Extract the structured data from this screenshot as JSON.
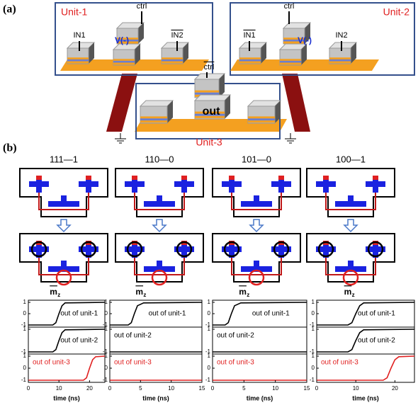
{
  "panel_a": {
    "label": "(a)",
    "unit_1": {
      "title": "Unit-1",
      "in1": "IN1",
      "v": "V(-)",
      "ctrl": "ctrl",
      "in2": "IN2"
    },
    "unit_2": {
      "title": "Unit-2",
      "in1": "IN1",
      "v": "V(-)",
      "ctrl": "ctrl",
      "in2": "IN2"
    },
    "unit_3": {
      "title": "Unit-3",
      "ctrl": "ctrl",
      "out": "out"
    }
  },
  "panel_b": {
    "label": "(b)",
    "columns": [
      {
        "case": "111—1",
        "mz": "m",
        "mz_sub": "z",
        "xlim": [
          0,
          25
        ],
        "xticks": [
          0,
          10,
          20
        ],
        "xlabel": "time (ns)",
        "traces": [
          {
            "name": "out of unit-1",
            "color": "#000000",
            "ylim": [
              -1,
              1
            ],
            "yticks": [
              -1,
              0,
              1
            ],
            "x": [
              0,
              8,
              9,
              10,
              11,
              12,
              25
            ],
            "y": [
              -1,
              -1,
              -0.8,
              0,
              0.7,
              0.95,
              1
            ]
          },
          {
            "name": "out of unit-2",
            "color": "#000000",
            "ylim": [
              -1,
              1
            ],
            "yticks": [
              -1,
              1
            ],
            "x": [
              0,
              8,
              9,
              10,
              11,
              12,
              25
            ],
            "y": [
              -1,
              -1,
              -0.8,
              0,
              0.7,
              0.95,
              1
            ]
          },
          {
            "name": "out of unit-3",
            "color": "#e02020",
            "ylim": [
              -1,
              1
            ],
            "yticks": [
              -1,
              0,
              1
            ],
            "x": [
              0,
              18,
              19,
              20,
              21,
              22,
              25
            ],
            "y": [
              -1,
              -1,
              -0.8,
              0,
              0.7,
              0.95,
              1
            ]
          }
        ]
      },
      {
        "case": "110—0",
        "mz": "m",
        "mz_sub": "z",
        "xlim": [
          0,
          15
        ],
        "xticks": [
          0,
          5,
          10,
          15
        ],
        "xlabel": "time (ns)",
        "traces": [
          {
            "name": "out of unit-1",
            "color": "#000000",
            "ylim": [
              -1,
              1
            ],
            "yticks": [
              -1,
              0,
              1
            ],
            "x": [
              0,
              3,
              3.5,
              4,
              4.5,
              5.5,
              15
            ],
            "y": [
              -1,
              -1,
              -0.8,
              0,
              0.7,
              0.95,
              1
            ]
          },
          {
            "name": "out of unit-2",
            "color": "#000000",
            "ylim": [
              -1,
              1
            ],
            "yticks": [
              -1,
              1
            ],
            "x": [
              0,
              15
            ],
            "y": [
              -1,
              -1
            ]
          },
          {
            "name": "out of unit-3",
            "color": "#e02020",
            "ylim": [
              -1,
              1
            ],
            "yticks": [
              -1,
              0,
              1
            ],
            "x": [
              0,
              15
            ],
            "y": [
              -1,
              -1
            ]
          }
        ]
      },
      {
        "case": "101—0",
        "mz": "m",
        "mz_sub": "z",
        "xlim": [
          0,
          15
        ],
        "xticks": [
          0,
          5,
          10,
          15
        ],
        "xlabel": "time (ns)",
        "traces": [
          {
            "name": "out of unit-1",
            "color": "#000000",
            "ylim": [
              -1,
              1
            ],
            "yticks": [
              -1,
              0,
              1
            ],
            "x": [
              0,
              2,
              2.5,
              3,
              3.5,
              4.5,
              15
            ],
            "y": [
              -1,
              -1,
              -0.8,
              0,
              0.7,
              0.95,
              1
            ]
          },
          {
            "name": "out of unit-2",
            "color": "#000000",
            "ylim": [
              -1,
              1
            ],
            "yticks": [
              -1,
              1
            ],
            "x": [
              0,
              15
            ],
            "y": [
              -1,
              -1
            ]
          },
          {
            "name": "out of unit-3",
            "color": "#e02020",
            "ylim": [
              -1,
              1
            ],
            "yticks": [
              -1,
              0,
              1
            ],
            "x": [
              0,
              15
            ],
            "y": [
              -1,
              -1
            ]
          }
        ]
      },
      {
        "case": "100—1",
        "mz": "m",
        "mz_sub": "z",
        "xlim": [
          0,
          25
        ],
        "xticks": [
          0,
          10,
          20
        ],
        "xlabel": "time (ns)",
        "traces": [
          {
            "name": "out of unit-1",
            "color": "#000000",
            "ylim": [
              -1,
              1
            ],
            "yticks": [
              -1,
              0,
              1
            ],
            "x": [
              0,
              8,
              9,
              10,
              11,
              12,
              25
            ],
            "y": [
              -1,
              -1,
              -0.8,
              0,
              0.7,
              0.95,
              1
            ]
          },
          {
            "name": "out of unit-2",
            "color": "#000000",
            "ylim": [
              -1,
              1
            ],
            "yticks": [
              -1,
              1
            ],
            "x": [
              0,
              8,
              9,
              10,
              11,
              12,
              25
            ],
            "y": [
              -1,
              -1,
              -0.8,
              0,
              0.7,
              0.95,
              1
            ]
          },
          {
            "name": "out of unit-3",
            "color": "#e02020",
            "ylim": [
              -1,
              1
            ],
            "yticks": [
              -1,
              0,
              1
            ],
            "x": [
              0,
              17,
              18,
              19,
              20,
              21,
              25
            ],
            "y": [
              -1,
              -1,
              -0.8,
              0,
              0.7,
              0.95,
              1
            ]
          }
        ]
      }
    ]
  }
}
